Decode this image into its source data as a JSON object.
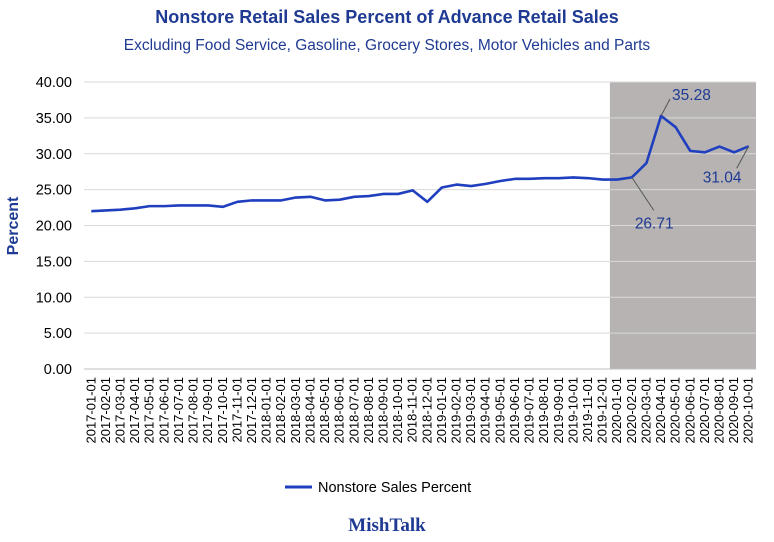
{
  "chart_data": {
    "type": "line",
    "title": "Nonstore Retail Sales Percent of Advance Retail Sales",
    "subtitle": "Excluding Food Service,  Gasoline, Grocery Stores, Motor Vehicles and Parts",
    "ylabel": "Percent",
    "xlabel": "",
    "ylim": [
      0,
      40
    ],
    "yticks": [
      "0.00",
      "5.00",
      "10.00",
      "15.00",
      "20.00",
      "25.00",
      "30.00",
      "35.00",
      "40.00"
    ],
    "grid": "horizontal",
    "legend_position": "bottom",
    "shaded_region": {
      "from": "2020-01-01",
      "to": "2020-10-01",
      "color": "#b7b3b3"
    },
    "categories": [
      "2017-01-01",
      "2017-02-01",
      "2017-03-01",
      "2017-04-01",
      "2017-05-01",
      "2017-06-01",
      "2017-07-01",
      "2017-08-01",
      "2017-09-01",
      "2017-10-01",
      "2017-11-01",
      "2017-12-01",
      "2018-01-01",
      "2018-02-01",
      "2018-03-01",
      "2018-04-01",
      "2018-05-01",
      "2018-06-01",
      "2018-07-01",
      "2018-08-01",
      "2018-09-01",
      "2018-10-01",
      "2018-11-01",
      "2018-12-01",
      "2019-01-01",
      "2019-02-01",
      "2019-03-01",
      "2019-04-01",
      "2019-05-01",
      "2019-06-01",
      "2019-07-01",
      "2019-08-01",
      "2019-09-01",
      "2019-10-01",
      "2019-11-01",
      "2019-12-01",
      "2020-01-01",
      "2020-02-01",
      "2020-03-01",
      "2020-04-01",
      "2020-05-01",
      "2020-06-01",
      "2020-07-01",
      "2020-08-01",
      "2020-09-01",
      "2020-10-01"
    ],
    "series": [
      {
        "name": "Nonstore Sales Percent",
        "color": "#1f3fbf",
        "values": [
          22.0,
          22.1,
          22.2,
          22.4,
          22.7,
          22.7,
          22.8,
          22.8,
          22.8,
          22.6,
          23.3,
          23.5,
          23.5,
          23.5,
          23.9,
          24.0,
          23.5,
          23.6,
          24.0,
          24.1,
          24.4,
          24.4,
          24.9,
          23.3,
          25.3,
          25.7,
          25.5,
          25.8,
          26.2,
          26.5,
          26.5,
          26.6,
          26.6,
          26.7,
          26.6,
          26.4,
          26.4,
          26.71,
          28.7,
          35.28,
          33.7,
          30.4,
          30.2,
          31.0,
          30.2,
          31.04
        ]
      }
    ],
    "annotations": [
      {
        "category": "2020-04-01",
        "value": 35.28,
        "label": "35.28",
        "position": "above-right"
      },
      {
        "category": "2020-02-01",
        "value": 26.71,
        "label": "26.71",
        "position": "below-right"
      },
      {
        "category": "2020-10-01",
        "value": 31.04,
        "label": "31.04",
        "position": "below-left"
      }
    ]
  },
  "branding": {
    "text": "MishTalk",
    "color": "#1f3a93"
  }
}
